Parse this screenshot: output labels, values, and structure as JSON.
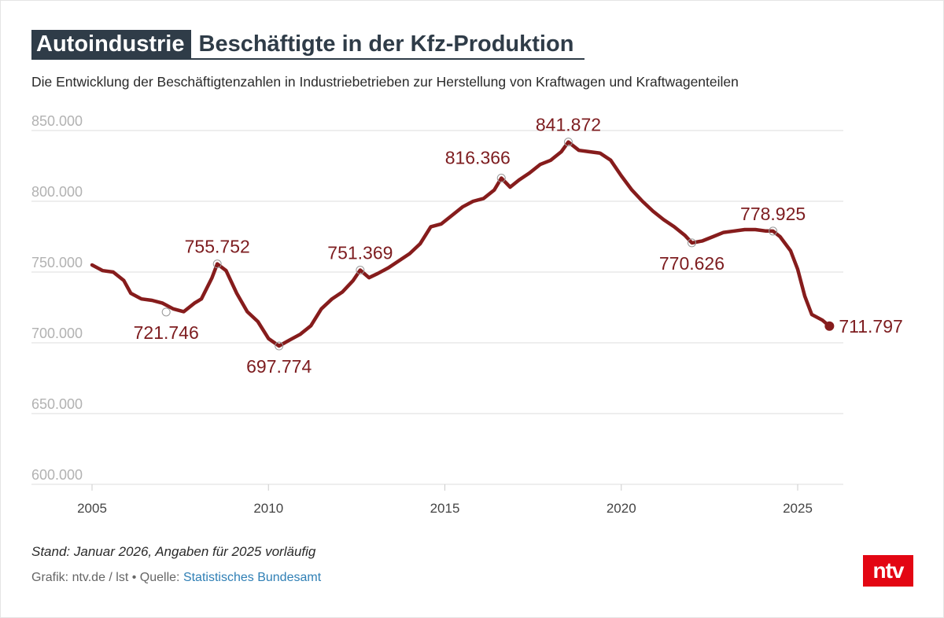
{
  "header": {
    "badge": "Autoindustrie",
    "title": "Beschäftigte in der Kfz-Produktion",
    "subtitle": "Die Entwicklung der Beschäftigtenzahlen in Industriebetrieben zur Herstellung von Kraftwagen und Kraftwagenteilen"
  },
  "footer": {
    "note": "Stand: Januar 2026, Angaben für 2025 vorläufig",
    "credit_prefix": "Grafik: ntv.de / lst • Quelle: ",
    "source": "Statistisches Bundesamt",
    "logo_text": "ntv"
  },
  "colors": {
    "line": "#861c1c",
    "annotation": "#7d1c1f",
    "grid": "#dddddd",
    "title_bg": "#2f3c48",
    "logo_bg": "#e30613",
    "source_link": "#2f7fb5"
  },
  "chart_data": {
    "type": "line",
    "y_tick_labels": [
      "850.000",
      "800.000",
      "750.000",
      "700.000",
      "650.000",
      "600.000"
    ],
    "y_ticks": [
      850000,
      800000,
      750000,
      700000,
      650000,
      600000
    ],
    "x_tick_labels": [
      "2005",
      "2010",
      "2015",
      "2020",
      "2025"
    ],
    "x_ticks": [
      2005,
      2010,
      2015,
      2020,
      2025
    ],
    "xlim": [
      2005,
      2026.2
    ],
    "ylim": [
      600000,
      850000
    ],
    "grid": "horizontal",
    "series": [
      {
        "x": [
          2005.0,
          2005.3,
          2005.6,
          2005.9,
          2006.1,
          2006.4,
          2006.7,
          2007.0,
          2007.3,
          2007.6,
          2007.9,
          2008.1,
          2008.4,
          2008.55,
          2008.8,
          2009.1,
          2009.4,
          2009.7,
          2010.0,
          2010.3,
          2010.6,
          2010.9,
          2011.2,
          2011.5,
          2011.8,
          2012.1,
          2012.4,
          2012.6,
          2012.85,
          2013.1,
          2013.4,
          2013.7,
          2014.0,
          2014.3,
          2014.6,
          2014.9,
          2015.2,
          2015.5,
          2015.8,
          2016.1,
          2016.4,
          2016.6,
          2016.85,
          2017.1,
          2017.4,
          2017.7,
          2018.0,
          2018.3,
          2018.5,
          2018.8,
          2019.1,
          2019.4,
          2019.7,
          2020.0,
          2020.3,
          2020.6,
          2020.9,
          2021.2,
          2021.5,
          2021.8,
          2022.0,
          2022.3,
          2022.6,
          2022.9,
          2023.2,
          2023.5,
          2023.8,
          2024.1,
          2024.3,
          2024.5,
          2024.8,
          2025.0,
          2025.2,
          2025.4,
          2025.7,
          2025.9
        ],
        "y": [
          755000,
          751000,
          750000,
          744000,
          735000,
          731000,
          730000,
          728000,
          724000,
          722000,
          728000,
          731000,
          746000,
          755752,
          751000,
          735000,
          722000,
          715000,
          703000,
          697774,
          702000,
          706000,
          712000,
          724000,
          731000,
          736000,
          744000,
          751369,
          746000,
          749000,
          753000,
          758000,
          763000,
          770000,
          782000,
          784000,
          790000,
          796000,
          800000,
          802000,
          808000,
          816366,
          810000,
          815000,
          820000,
          826000,
          829000,
          835000,
          841872,
          836000,
          835000,
          834000,
          829000,
          818000,
          808000,
          800000,
          793000,
          787000,
          782000,
          776000,
          770626,
          772000,
          775000,
          778000,
          779000,
          780000,
          780000,
          779000,
          778925,
          775000,
          765000,
          752000,
          733000,
          720000,
          716000,
          711797
        ]
      }
    ],
    "annotations": [
      {
        "x": 2007.1,
        "y": 721746,
        "label": "721.746",
        "pos": "below"
      },
      {
        "x": 2008.55,
        "y": 755752,
        "label": "755.752",
        "pos": "above"
      },
      {
        "x": 2010.3,
        "y": 697774,
        "label": "697.774",
        "pos": "below"
      },
      {
        "x": 2012.6,
        "y": 751369,
        "label": "751.369",
        "pos": "above"
      },
      {
        "x": 2016.6,
        "y": 816366,
        "label": "816.366",
        "pos": "above-left"
      },
      {
        "x": 2018.5,
        "y": 841872,
        "label": "841.872",
        "pos": "above"
      },
      {
        "x": 2022.0,
        "y": 770626,
        "label": "770.626",
        "pos": "below"
      },
      {
        "x": 2024.3,
        "y": 778925,
        "label": "778.925",
        "pos": "above"
      },
      {
        "x": 2025.9,
        "y": 711797,
        "label": "711.797",
        "pos": "right"
      }
    ]
  }
}
